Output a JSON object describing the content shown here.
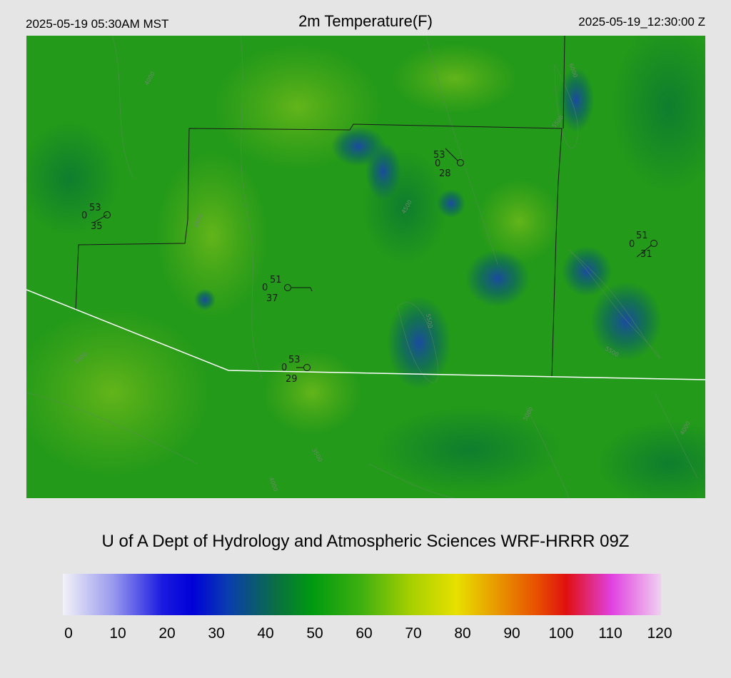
{
  "header": {
    "local_time": "2025-05-19 05:30AM MST",
    "title": "2m Temperature(F)",
    "utc_time": "2025-05-19_12:30:00 Z"
  },
  "credit": "U of A Dept of Hydrology and Atmospheric Sciences WRF-HRRR 09Z",
  "contour_labels": [
    "5500",
    "4500",
    "4000",
    "5000",
    "6000",
    "3500"
  ],
  "stations": [
    {
      "temp": "53",
      "dew": "35",
      "cover": "0"
    },
    {
      "temp": "51",
      "dew": "37",
      "cover": "0"
    },
    {
      "temp": "53",
      "dew": "29",
      "cover": "0"
    },
    {
      "temp": "53",
      "dew": "28",
      "cover": "0"
    },
    {
      "temp": "51",
      "dew": "31",
      "cover": "0"
    }
  ],
  "colorbar": {
    "ticks": [
      "0",
      "10",
      "20",
      "30",
      "40",
      "50",
      "60",
      "70",
      "80",
      "90",
      "100",
      "110",
      "120"
    ],
    "colors": [
      "#f2f2f8",
      "#9a9aee",
      "#1a1ae0",
      "#0000d8",
      "#0a3cb0",
      "#0a7040",
      "#009a10",
      "#40b010",
      "#a8d000",
      "#e8e000",
      "#e89000",
      "#e85000",
      "#e01010",
      "#e040e0",
      "#f0d0f0"
    ],
    "stops": [
      0,
      10,
      20,
      26,
      33,
      43,
      50,
      60,
      70,
      79,
      88,
      95,
      101,
      110,
      120
    ]
  }
}
